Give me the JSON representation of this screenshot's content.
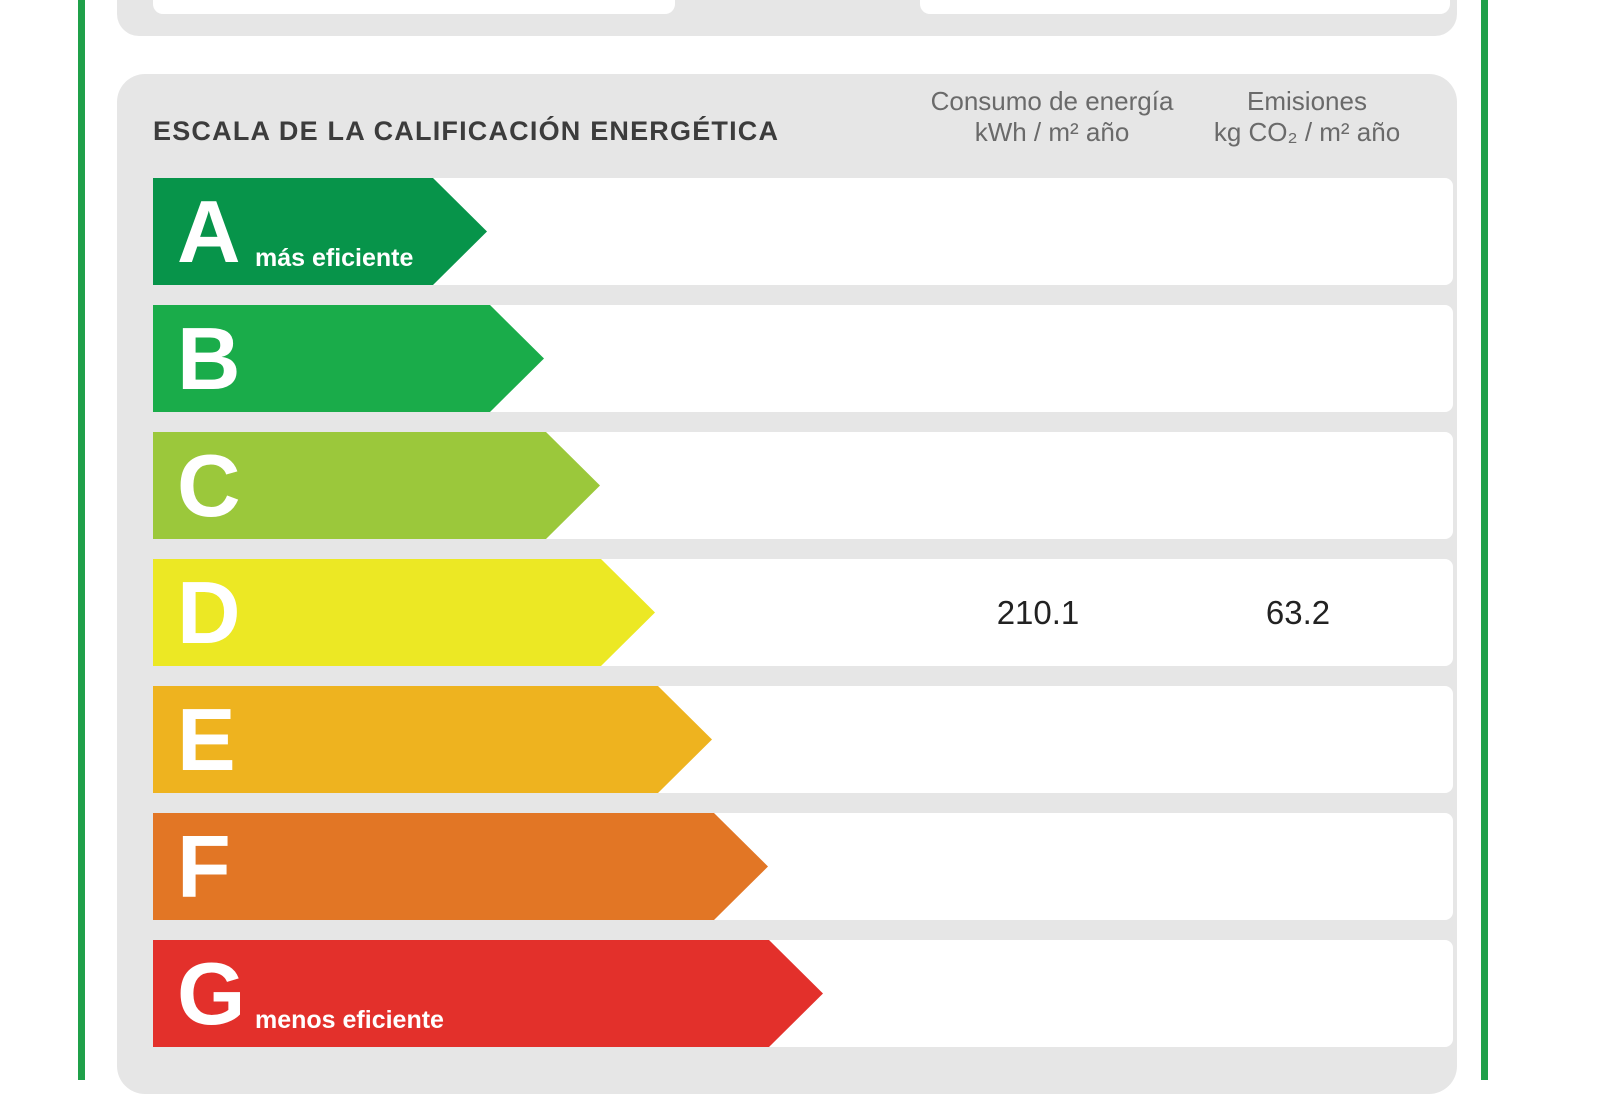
{
  "title": "ESCALA DE LA CALIFICACIÓN ENERGÉTICA",
  "columns": {
    "energy": {
      "line1": "Consumo de energía",
      "line2": "kWh / m² año"
    },
    "emissions": {
      "line1": "Emisiones",
      "line2": "kg CO₂ / m² año"
    }
  },
  "bands": [
    {
      "letter": "A",
      "sublabel": "más eficiente",
      "color": "#07944a",
      "energy": "",
      "emissions": ""
    },
    {
      "letter": "B",
      "sublabel": "",
      "color": "#1aac4a",
      "energy": "",
      "emissions": ""
    },
    {
      "letter": "C",
      "sublabel": "",
      "color": "#9bc83b",
      "energy": "",
      "emissions": ""
    },
    {
      "letter": "D",
      "sublabel": "",
      "color": "#ece824",
      "energy": "210.1",
      "emissions": "63.2"
    },
    {
      "letter": "E",
      "sublabel": "",
      "color": "#eeb31f",
      "energy": "",
      "emissions": ""
    },
    {
      "letter": "F",
      "sublabel": "",
      "color": "#e27625",
      "energy": "",
      "emissions": ""
    },
    {
      "letter": "G",
      "sublabel": "menos eficiente",
      "color": "#e3302b",
      "energy": "",
      "emissions": ""
    }
  ]
}
